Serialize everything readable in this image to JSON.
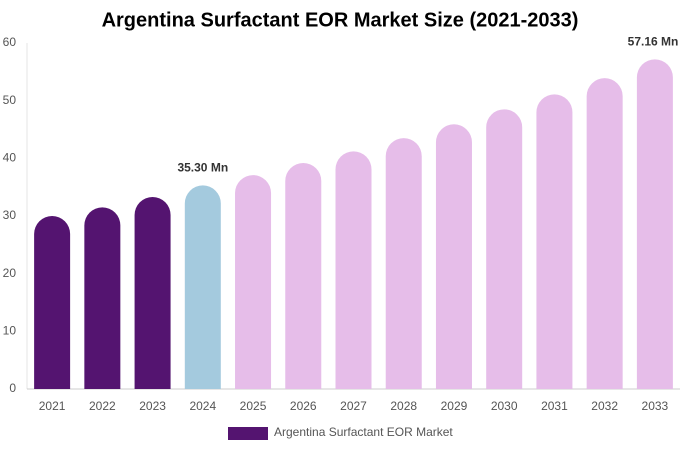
{
  "chart_data": {
    "type": "bar",
    "title": "Argentina Surfactant EOR Market Size (2021-2033)",
    "categories": [
      "2021",
      "2022",
      "2023",
      "2024",
      "2025",
      "2026",
      "2027",
      "2028",
      "2029",
      "2030",
      "2031",
      "2032",
      "2033"
    ],
    "series": [
      {
        "name": "Argentina Surfactant EOR Market",
        "color": "#541470",
        "values": [
          30.0,
          31.5,
          33.3,
          35.3,
          37.1,
          39.2,
          41.2,
          43.5,
          45.9,
          48.5,
          51.1,
          53.9,
          57.16
        ],
        "value_labels": [
          null,
          null,
          null,
          "35.30 Mn",
          null,
          null,
          null,
          null,
          null,
          null,
          null,
          null,
          "57.16 Mn"
        ],
        "colors": [
          "#541470",
          "#541470",
          "#541470",
          "#a4cade",
          "#e6bde9",
          "#e6bde9",
          "#e6bde9",
          "#e6bde9",
          "#e6bde9",
          "#e6bde9",
          "#e6bde9",
          "#e6bde9",
          "#e6bde9"
        ]
      }
    ],
    "ylim": [
      0,
      60
    ],
    "yticks": [
      0,
      10,
      20,
      30,
      40,
      50,
      60
    ],
    "grid": false
  }
}
